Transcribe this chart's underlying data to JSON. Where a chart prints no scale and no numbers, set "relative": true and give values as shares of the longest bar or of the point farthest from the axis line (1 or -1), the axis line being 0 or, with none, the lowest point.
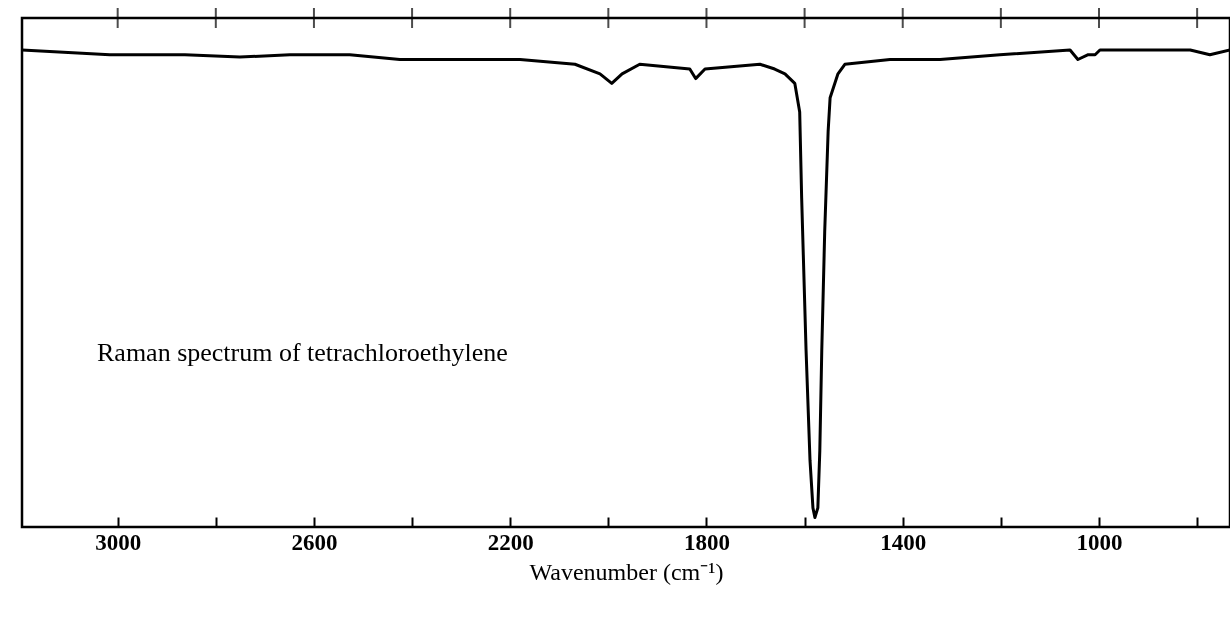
{
  "chart_data": {
    "type": "line",
    "relative": true,
    "xlabel": "Wavenumber (cm⁻¹)",
    "annotations": [
      "Raman spectrum of tetrachloroethylene"
    ],
    "xlim": [
      3195,
      733
    ],
    "xticks": [
      3000,
      {
        "value": 2800,
        "label": null
      },
      2600,
      {
        "value": 2400,
        "label": null
      },
      2200,
      {
        "value": 2000,
        "label": null
      },
      1800,
      {
        "value": 1600,
        "label": null
      },
      1400,
      {
        "value": 1200,
        "label": null
      },
      1000,
      {
        "value": 800,
        "label": null
      }
    ],
    "grid": false,
    "marker": "none",
    "line_style": "solid",
    "series": [
      {
        "color": "#000000",
        "x": [
          3195,
          3016,
          2955,
          2863,
          2751,
          2649,
          2527,
          2425,
          2282,
          2180,
          2068,
          2017,
          1993,
          1972,
          1936,
          1834,
          1822,
          1803,
          1691,
          1661,
          1640,
          1620,
          1610,
          1606,
          1597,
          1589,
          1583,
          1579,
          1573,
          1569,
          1565,
          1559,
          1552,
          1548,
          1532,
          1518,
          1426,
          1324,
          1202,
          1059,
          1043,
          1022,
          1008,
          998,
          876,
          814,
          774,
          733
        ],
        "values": [
          1.0,
          0.99,
          0.99,
          0.99,
          0.985,
          0.99,
          0.99,
          0.98,
          0.98,
          0.98,
          0.97,
          0.95,
          0.93,
          0.95,
          0.97,
          0.96,
          0.94,
          0.96,
          0.97,
          0.96,
          0.95,
          0.93,
          0.87,
          0.69,
          0.37,
          0.14,
          0.04,
          0.02,
          0.04,
          0.16,
          0.37,
          0.62,
          0.83,
          0.9,
          0.95,
          0.97,
          0.98,
          0.98,
          0.99,
          1.0,
          0.98,
          0.99,
          0.99,
          1.0,
          1.0,
          1.0,
          0.99,
          1.0
        ]
      }
    ]
  }
}
